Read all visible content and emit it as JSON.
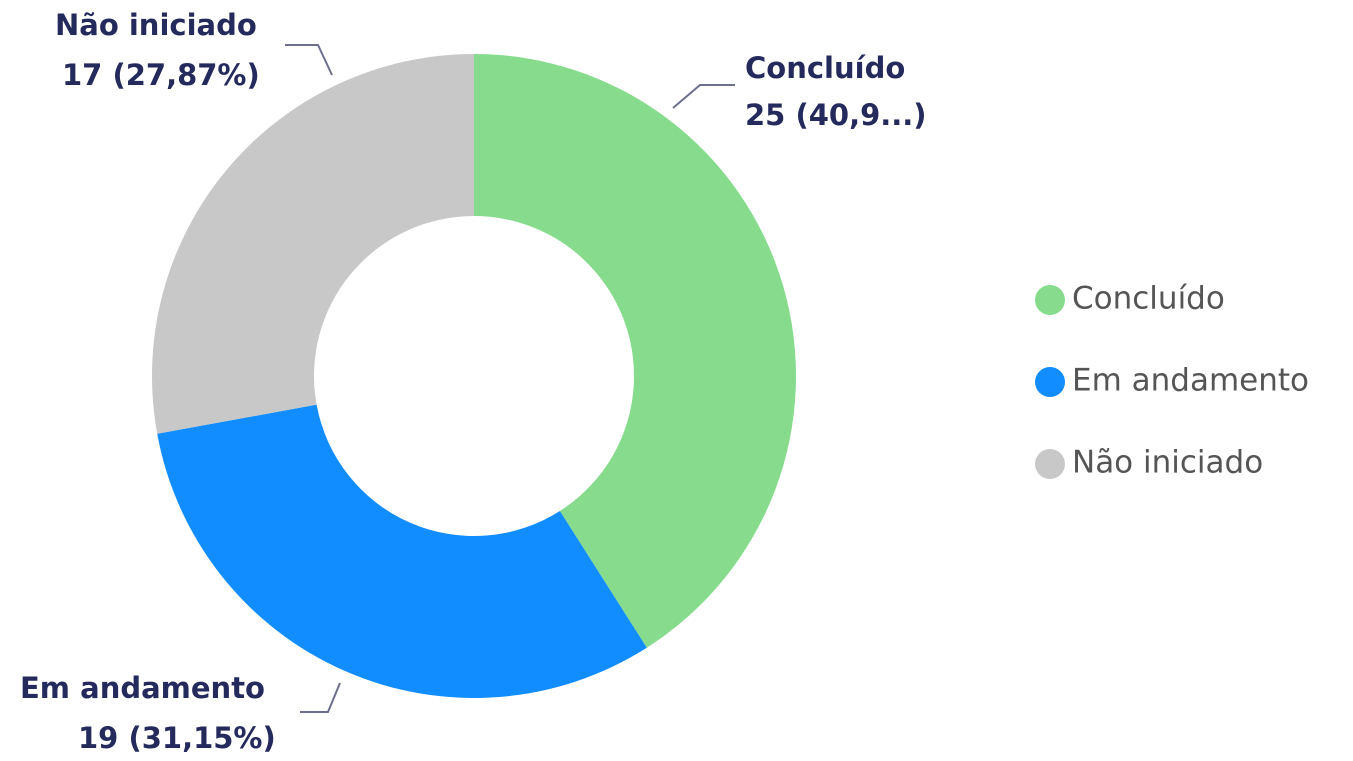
{
  "chart_data": {
    "type": "donut",
    "categories": [
      "Concluído",
      "Em andamento",
      "Não iniciado"
    ],
    "values": [
      25,
      19,
      17
    ],
    "value_labels": [
      "25 (40,9...)",
      "19 (31,15%)",
      "17 (27,87%)"
    ],
    "colors": [
      "#86dc8c",
      "#118dff",
      "#c8c8c8"
    ],
    "legend": "right"
  }
}
